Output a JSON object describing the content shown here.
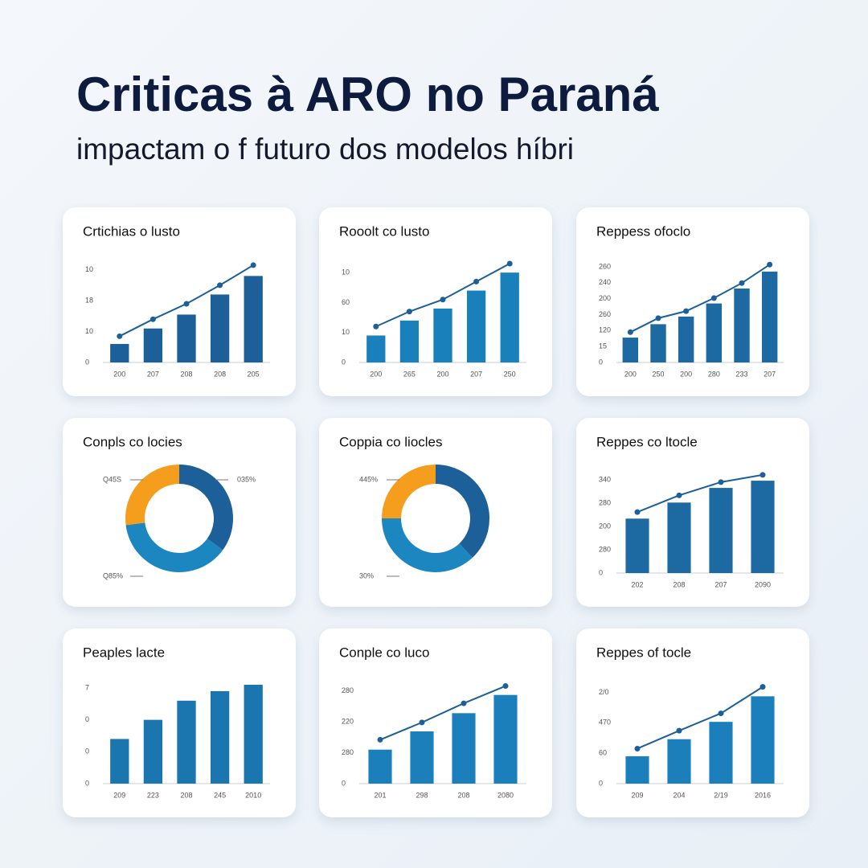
{
  "header": {
    "title": "Criticas à ARO no Paraná",
    "subtitle": "impactam o f futuro dos modelos híbri"
  },
  "chart_data": [
    {
      "type": "bar",
      "title": "Crtichias o lusto",
      "categories": [
        "200",
        "207",
        "208",
        "208",
        "205"
      ],
      "ylim": [
        0,
        32
      ],
      "yticks": [
        0,
        10,
        {
          "value": 20,
          "label": "18"
        },
        {
          "value": 30,
          "label": "10"
        }
      ],
      "series": [
        {
          "type": "bar",
          "color": "#1d5f98",
          "values": [
            6,
            11,
            15.5,
            22,
            28
          ]
        },
        {
          "type": "line",
          "color": "#1d5f98",
          "values": [
            8.5,
            14,
            19,
            25,
            31.5
          ]
        }
      ]
    },
    {
      "type": "bar",
      "title": "Rooolt co lusto",
      "categories": [
        "200",
        "265",
        "200",
        "207",
        "250"
      ],
      "ylim": [
        0,
        33
      ],
      "yticks": [
        0,
        10,
        {
          "value": 20,
          "label": "60"
        },
        {
          "value": 30,
          "label": "10"
        }
      ],
      "series": [
        {
          "type": "bar",
          "color": "#1a80bb",
          "values": [
            9,
            14,
            18,
            24,
            30
          ]
        },
        {
          "type": "line",
          "color": "#1d5f98",
          "values": [
            12,
            17,
            21,
            27,
            33
          ]
        }
      ]
    },
    {
      "type": "bar",
      "title": "Reppess ofoclo",
      "categories": [
        "200",
        "250",
        "200",
        "280",
        "233",
        "207"
      ],
      "ylim": [
        0,
        310
      ],
      "yticks": [
        0,
        {
          "value": 50,
          "label": "15"
        },
        {
          "value": 100,
          "label": "120"
        },
        {
          "value": 150,
          "label": "260"
        },
        200,
        {
          "value": 250,
          "label": "240"
        },
        {
          "value": 300,
          "label": "260"
        }
      ],
      "series": [
        {
          "type": "bar",
          "color": "#1d6aa3",
          "values": [
            78,
            120,
            144,
            185,
            232,
            285
          ]
        },
        {
          "type": "line",
          "color": "#1d5f98",
          "values": [
            95,
            139,
            161,
            202,
            249,
            307
          ]
        }
      ]
    },
    {
      "type": "donut",
      "title": "Conpls co locies",
      "annotations": [
        "Q45S",
        "035%",
        "Q85%"
      ],
      "values": [
        35,
        38,
        27
      ],
      "colors": [
        "#1d5f98",
        "#1b86c0",
        "#f59e1e"
      ]
    },
    {
      "type": "donut",
      "title": "Coppia co liocles",
      "annotations": [
        "445%",
        "30%"
      ],
      "values": [
        38,
        37,
        25
      ],
      "colors": [
        "#1d5f98",
        "#1b86c0",
        "#f59e1e"
      ]
    },
    {
      "type": "bar",
      "title": "Reppes co ltocle",
      "categories": [
        "202",
        "208",
        "207",
        "2090"
      ],
      "ylim": [
        0,
        425
      ],
      "yticks": [
        0,
        {
          "value": 100,
          "label": "280"
        },
        200,
        {
          "value": 300,
          "label": "280"
        },
        {
          "value": 400,
          "label": "340"
        }
      ],
      "series": [
        {
          "type": "bar",
          "color": "#1d6aa3",
          "values": [
            234,
            303,
            366,
            397
          ]
        },
        {
          "type": "line",
          "color": "#1d5f98",
          "values": [
            262,
            334,
            391,
            422
          ]
        }
      ]
    },
    {
      "type": "bar",
      "title": "Peaples lacte",
      "categories": [
        "209",
        "223",
        "208",
        "245",
        "2010"
      ],
      "ylim": [
        0,
        3.1
      ],
      "yticks": [
        0,
        {
          "value": 1,
          "label": "0"
        },
        {
          "value": 2,
          "label": "0"
        },
        {
          "value": 3,
          "label": "7"
        }
      ],
      "series": [
        {
          "type": "bar",
          "color": "#1b76b0",
          "values": [
            1.4,
            2.0,
            2.6,
            2.9,
            3.1
          ]
        }
      ]
    },
    {
      "type": "bar",
      "title": "Conple co luco",
      "categories": [
        "201",
        "298",
        "208",
        "2080"
      ],
      "ylim": [
        0,
        320
      ],
      "yticks": [
        0,
        {
          "value": 100,
          "label": "280"
        },
        {
          "value": 200,
          "label": "220"
        },
        {
          "value": 300,
          "label": "280"
        }
      ],
      "series": [
        {
          "type": "bar",
          "color": "#1a7fba",
          "values": [
            110,
            169,
            228,
            287
          ]
        },
        {
          "type": "line",
          "color": "#1d5f98",
          "values": [
            142,
            198,
            260,
            316
          ]
        }
      ]
    },
    {
      "type": "bar",
      "title": "Reppes of tocle",
      "categories": [
        "209",
        "204",
        "2/19",
        "2016"
      ],
      "ylim": [
        0,
        325
      ],
      "yticks": [
        0,
        {
          "value": 100,
          "label": "60"
        },
        {
          "value": 200,
          "label": "470"
        },
        {
          "value": 300,
          "label": "2/0"
        }
      ],
      "series": [
        {
          "type": "bar",
          "color": "#1a7fba",
          "values": [
            90,
            146,
            203,
            287
          ]
        },
        {
          "type": "line",
          "color": "#1d5f98",
          "values": [
            115,
            174,
            231,
            318
          ]
        }
      ]
    }
  ]
}
